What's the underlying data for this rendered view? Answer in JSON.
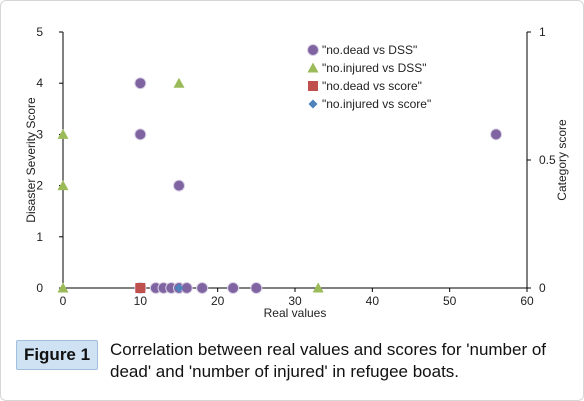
{
  "figure": {
    "label": "Figure 1",
    "caption": "Correlation between real values and scores for 'number of dead' and 'number of injured' in refugee boats."
  },
  "chart_data": {
    "type": "scatter",
    "title": "",
    "xlabel": "Real values",
    "ylabel": "Disaster Severity Score",
    "y2label": "Category score",
    "xlim": [
      0,
      60
    ],
    "ylim": [
      0,
      5
    ],
    "y2lim": [
      0,
      1
    ],
    "xticks": [
      0,
      10,
      20,
      30,
      40,
      50,
      60
    ],
    "yticks": [
      0,
      1,
      2,
      3,
      4,
      5
    ],
    "y2ticks": [
      0,
      0.5,
      1
    ],
    "y2ticklabels": [
      "0",
      "0.5",
      "1"
    ],
    "grid": false,
    "legend_position": "top-right",
    "series": [
      {
        "name": "\"no.dead vs DSS\"",
        "axis": "left",
        "marker": "circle",
        "color": "#8064a2",
        "x": [
          10,
          10,
          15,
          56,
          10,
          12,
          13,
          14,
          15,
          16,
          18,
          22,
          25
        ],
        "y": [
          4,
          3,
          2,
          3,
          0,
          0,
          0,
          0,
          0,
          0,
          0,
          0,
          0
        ]
      },
      {
        "name": "\"no.injured vs DSS\"",
        "axis": "left",
        "marker": "triangle",
        "color": "#9bbb59",
        "x": [
          0,
          0,
          15,
          0,
          33
        ],
        "y": [
          3,
          2,
          4,
          0,
          0
        ]
      },
      {
        "name": "\"no.dead vs score\"",
        "axis": "right",
        "marker": "square",
        "color": "#c0504d",
        "x": [
          10
        ],
        "y": [
          0
        ]
      },
      {
        "name": "\"no.injured vs score\"",
        "axis": "right",
        "marker": "diamond",
        "color": "#4f81bd",
        "x": [
          15
        ],
        "y": [
          0
        ]
      }
    ]
  }
}
